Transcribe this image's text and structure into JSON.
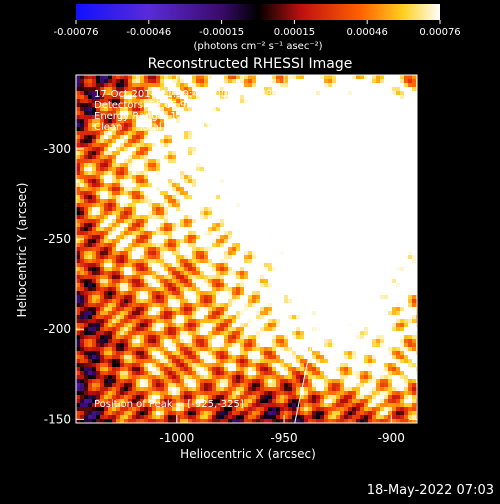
{
  "colorbar": {
    "ticks": [
      "-0.00076",
      "-0.00046",
      "-0.00015",
      "0.00015",
      "0.00046",
      "0.00076"
    ],
    "unit_label": "(photons cm⁻² s⁻¹ asec⁻²)"
  },
  "plot": {
    "title": "Reconstructed RHESSI Image",
    "info_lines": [
      "17-Oct-2014 21:39:48.000 to 21:43:04.000",
      "Detectors: 3F 6F 9F, Att 0",
      "Energy Range: 12.0 - 25.0 keV",
      "Clean     Total counts: 1.39E+03"
    ],
    "peak_label": "Position of Peak = [-925,-325]",
    "footer_date": "18-May-2022 07:03"
  },
  "chart_data": {
    "type": "heatmap",
    "title": "Reconstructed RHESSI Image",
    "xlabel": "Heliocentric X (arcsec)",
    "ylabel": "Heliocentric Y (arcsec)",
    "xlim": [
      -1047,
      -888
    ],
    "ylim": [
      -341,
      -148
    ],
    "x_ticks": [
      -1000,
      -950,
      -900
    ],
    "x_tick_labels": [
      "-1000",
      "-950",
      "-900"
    ],
    "y_ticks": [
      -150,
      -200,
      -250,
      -300
    ],
    "y_tick_labels": [
      "-150",
      "-200",
      "-250",
      "-300"
    ],
    "colorbar_range": [
      -0.00076,
      0.00076
    ],
    "limb_line": [
      [
        -945,
        -148
      ],
      [
        -911,
        -341
      ]
    ],
    "peak_position": [
      -925,
      -325
    ],
    "bright_regions": [
      {
        "x": -925,
        "y": -300,
        "level": 0.95
      },
      {
        "x": -905,
        "y": -320,
        "level": 0.9
      },
      {
        "x": -915,
        "y": -240,
        "level": 0.85
      },
      {
        "x": -935,
        "y": -215,
        "level": 0.8
      },
      {
        "x": -1010,
        "y": -160,
        "level": 0.75
      },
      {
        "x": -1000,
        "y": -330,
        "level": 0.8
      },
      {
        "x": -1035,
        "y": -285,
        "level": 0.7
      },
      {
        "x": -980,
        "y": -280,
        "level": 0.65
      },
      {
        "x": -895,
        "y": -175,
        "level": 0.8
      },
      {
        "x": -975,
        "y": -195,
        "level": 0.6
      },
      {
        "x": -960,
        "y": -265,
        "level": 0.7
      },
      {
        "x": -1020,
        "y": -240,
        "level": 0.6
      },
      {
        "x": -890,
        "y": -270,
        "level": 0.85
      },
      {
        "x": -960,
        "y": -320,
        "level": 0.75
      }
    ],
    "dim_regions": [
      {
        "x": -1030,
        "y": -210,
        "level": 0.45
      },
      {
        "x": -940,
        "y": -170,
        "level": 0.45
      },
      {
        "x": -1000,
        "y": -225,
        "level": 0.4
      }
    ]
  }
}
